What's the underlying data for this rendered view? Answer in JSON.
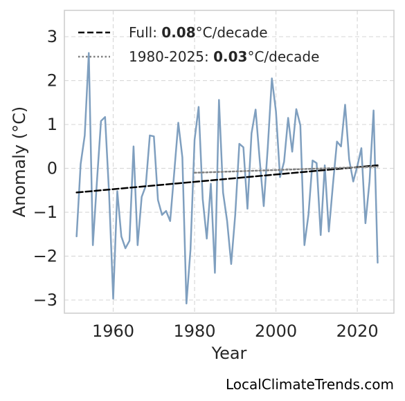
{
  "chart_data": {
    "type": "line",
    "title": "",
    "xlabel": "Year",
    "ylabel": "Anomaly (°C)",
    "xlim": [
      1948,
      2029
    ],
    "ylim": [
      -3.3,
      3.6
    ],
    "xticks": [
      1960,
      1980,
      2000,
      2020
    ],
    "yticks": [
      -3,
      -2,
      -1,
      0,
      1,
      2,
      3
    ],
    "grid": true,
    "legend_position": "top-left",
    "series": [
      {
        "color": "#7f9fbf",
        "x": [
          1951,
          1952,
          1953,
          1954,
          1955,
          1956,
          1957,
          1958,
          1959,
          1960,
          1961,
          1962,
          1963,
          1964,
          1965,
          1966,
          1967,
          1968,
          1969,
          1970,
          1971,
          1972,
          1973,
          1974,
          1975,
          1976,
          1977,
          1978,
          1979,
          1980,
          1981,
          1982,
          1983,
          1984,
          1985,
          1986,
          1987,
          1988,
          1989,
          1990,
          1991,
          1992,
          1993,
          1994,
          1995,
          1996,
          1997,
          1998,
          1999,
          2000,
          2001,
          2002,
          2003,
          2004,
          2005,
          2006,
          2007,
          2008,
          2009,
          2010,
          2011,
          2012,
          2013,
          2014,
          2015,
          2016,
          2017,
          2018,
          2019,
          2020,
          2021,
          2022,
          2023,
          2024,
          2025
        ],
        "values": [
          -1.55,
          0.1,
          0.75,
          2.63,
          -1.75,
          -0.3,
          1.08,
          1.17,
          -0.6,
          -2.97,
          -0.52,
          -1.55,
          -1.82,
          -1.65,
          0.5,
          -1.75,
          -0.65,
          -0.4,
          0.75,
          0.73,
          -0.72,
          -1.06,
          -0.97,
          -1.2,
          -0.09,
          1.04,
          0.25,
          -3.08,
          -1.85,
          0.65,
          1.4,
          -0.7,
          -1.6,
          -0.35,
          -2.38,
          1.56,
          -0.55,
          -1.2,
          -2.18,
          -1.05,
          0.56,
          0.48,
          -0.92,
          0.8,
          1.34,
          0.2,
          -0.86,
          0.49,
          2.05,
          1.3,
          -0.2,
          0.15,
          1.15,
          0.38,
          1.35,
          0.98,
          -1.75,
          -1.05,
          0.18,
          0.12,
          -1.52,
          0.07,
          -1.44,
          -0.38,
          0.61,
          0.5,
          1.45,
          0.2,
          -0.3,
          0.05,
          0.46,
          -1.25,
          -0.3,
          1.32,
          -2.15
        ]
      },
      {
        "name": "Full: 0.08°C/decade",
        "style": "dashed",
        "color": "#000000",
        "x": [
          1951,
          2025
        ],
        "values": [
          -0.55,
          0.07
        ]
      },
      {
        "name": "1980-2025: 0.03°C/decade",
        "style": "dotted",
        "color": "#808080",
        "x": [
          1980,
          2025
        ],
        "values": [
          -0.1,
          0.04
        ]
      }
    ]
  },
  "legend": {
    "full_prefix": "Full: ",
    "full_value": "0.08",
    "full_suffix": "°C/decade",
    "recent_prefix": "1980-2025: ",
    "recent_value": "0.03",
    "recent_suffix": "°C/decade"
  },
  "watermark": "LocalClimateTrends.com"
}
